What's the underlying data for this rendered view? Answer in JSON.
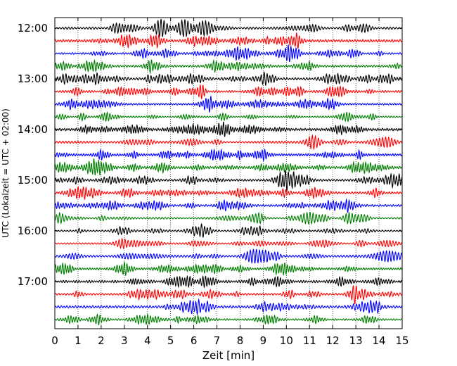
{
  "chart_data": {
    "type": "line",
    "title": "",
    "xlabel": "Zeit  [min]",
    "ylabel": "UTC (Lokalzeit = UTC + 02:00)",
    "xlim": [
      0,
      15
    ],
    "xticks": [
      "0",
      "1",
      "2",
      "3",
      "4",
      "5",
      "6",
      "7",
      "8",
      "9",
      "10",
      "11",
      "12",
      "13",
      "14",
      "15"
    ],
    "yticks": [
      "12:00",
      "13:00",
      "14:00",
      "15:00",
      "16:00",
      "17:00"
    ],
    "grid": "vertical dotted at each minute",
    "trace_interval_min": 15,
    "first_trace": "12:00",
    "trace_count": 24,
    "trace_colors": [
      "#000000",
      "#ff0000",
      "#0000ff",
      "#007f00"
    ],
    "color_cycle_note": "colors repeat black, red, blue, green for each quarter hour"
  }
}
